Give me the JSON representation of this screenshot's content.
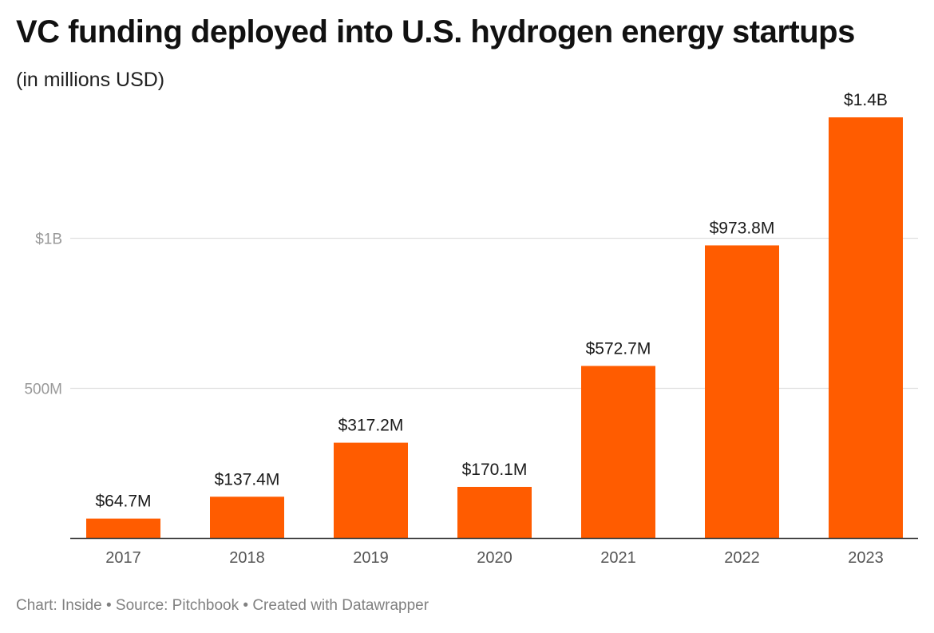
{
  "header": {
    "title": "VC funding deployed into U.S. hydrogen energy startups",
    "subtitle": "(in millions USD)"
  },
  "footer": {
    "credit": "Chart: Inside • Source: Pitchbook • Created with Datawrapper"
  },
  "colors": {
    "bar": "#ff5c00",
    "gridline": "#e0e0e0",
    "axis_line": "#333333",
    "tick_label": "#999999",
    "category_label": "#555555",
    "data_label": "#1a1a1a"
  },
  "chart_data": {
    "type": "bar",
    "categories": [
      "2017",
      "2018",
      "2019",
      "2020",
      "2021",
      "2022",
      "2023"
    ],
    "values": [
      64.7,
      137.4,
      317.2,
      170.1,
      572.7,
      973.8,
      1400
    ],
    "data_labels": [
      "$64.7M",
      "$137.4M",
      "$317.2M",
      "$170.1M",
      "$572.7M",
      "$973.8M",
      "$1.4B"
    ],
    "y_ticks": [
      {
        "value": 500,
        "label": "500M"
      },
      {
        "value": 1000,
        "label": "$1B"
      }
    ],
    "ylim": [
      0,
      1400
    ],
    "grid": true,
    "legend": "none"
  }
}
